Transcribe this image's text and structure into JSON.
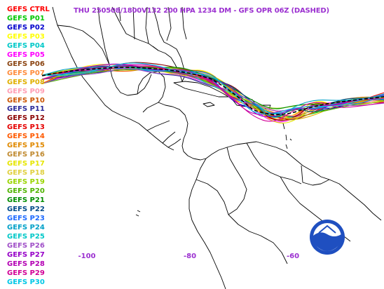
{
  "title": "THU 250508/1800V132  200 HPA 1234 DM - GFS OPR 06Z (DASHED)",
  "legend": [
    {
      "label": "GEFS CTRL",
      "color": "#ff0000"
    },
    {
      "label": "GEFS P01",
      "color": "#00c800"
    },
    {
      "label": "GEFS P02",
      "color": "#0000cc"
    },
    {
      "label": "GEFS P03",
      "color": "#ffff00"
    },
    {
      "label": "GEFS P04",
      "color": "#00c8c8"
    },
    {
      "label": "GEFS P05",
      "color": "#ff00ff"
    },
    {
      "label": "GEFS P06",
      "color": "#8b4513"
    },
    {
      "label": "GEFS P07",
      "color": "#ff8c3c"
    },
    {
      "label": "GEFS P08",
      "color": "#e0b000"
    },
    {
      "label": "GEFS P09",
      "color": "#ff9eb4"
    },
    {
      "label": "GEFS P10",
      "color": "#cc5500"
    },
    {
      "label": "GEFS P11",
      "color": "#2a2a9a"
    },
    {
      "label": "GEFS P12",
      "color": "#8b0000"
    },
    {
      "label": "GEFS P13",
      "color": "#e60000"
    },
    {
      "label": "GEFS P14",
      "color": "#ff5a00"
    },
    {
      "label": "GEFS P15",
      "color": "#e08a00"
    },
    {
      "label": "GEFS P16",
      "color": "#c08a30"
    },
    {
      "label": "GEFS P17",
      "color": "#e6e600"
    },
    {
      "label": "GEFS P18",
      "color": "#e0d040"
    },
    {
      "label": "GEFS P19",
      "color": "#9ad400"
    },
    {
      "label": "GEFS P20",
      "color": "#50b400"
    },
    {
      "label": "GEFS P21",
      "color": "#008c00"
    },
    {
      "label": "GEFS P22",
      "color": "#004a8a"
    },
    {
      "label": "GEFS P23",
      "color": "#1e6aff"
    },
    {
      "label": "GEFS P24",
      "color": "#00a0c8"
    },
    {
      "label": "GEFS P25",
      "color": "#00c8c8"
    },
    {
      "label": "GEFS P26",
      "color": "#a050c8"
    },
    {
      "label": "GEFS P27",
      "color": "#9600c8"
    },
    {
      "label": "GEFS P28",
      "color": "#b400b4"
    },
    {
      "label": "GEFS P29",
      "color": "#d20096"
    },
    {
      "label": "GEFS P30",
      "color": "#00c8e6"
    }
  ],
  "lon_labels": [
    {
      "text": "-100",
      "lon": -100
    },
    {
      "text": "-80",
      "lon": -80
    },
    {
      "text": "-60",
      "lon": -60
    }
  ],
  "colors": {
    "title": "#9b30d0",
    "coastline": "#000000",
    "opr_dashed": "#000000",
    "noaa_blue": "#1f4fc0"
  },
  "logo": {
    "text": "NOAA"
  }
}
